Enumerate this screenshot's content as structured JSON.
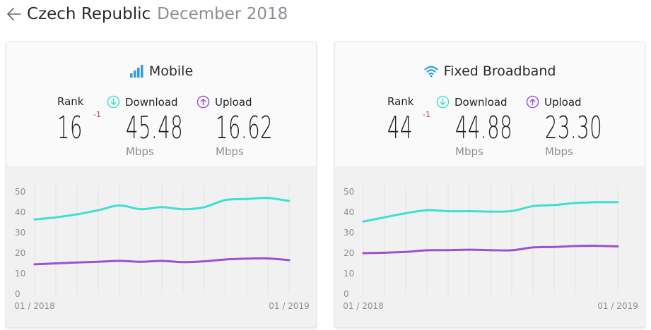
{
  "header": {
    "country": "Czech Republic",
    "date": "December 2018"
  },
  "colors": {
    "download": "#3ee0cf",
    "upload": "#9f4fd4",
    "mobile_icon": "#2f9ee0",
    "rank_change": "#e0264a"
  },
  "cards": [
    {
      "id": "mobile",
      "title": "Mobile",
      "icon": "signal-bars-icon",
      "rank_label": "Rank",
      "rank": "16",
      "rank_change": "-1",
      "download_label": "Download",
      "download": "45.48",
      "download_unit": "Mbps",
      "upload_label": "Upload",
      "upload": "16.62",
      "upload_unit": "Mbps",
      "chart_data": {
        "type": "line",
        "x": [
          "01 / 2018",
          "",
          "",
          "",
          "",
          "",
          "",
          "",
          "",
          "",
          "",
          "",
          "01 / 2019"
        ],
        "x_tick_labels": [
          "01 / 2018",
          "01 / 2019"
        ],
        "ylim": [
          0,
          50
        ],
        "yticks": [
          "0",
          "10",
          "20",
          "30",
          "40",
          "50"
        ],
        "series": [
          {
            "key": "download",
            "values": [
              36.5,
              37.5,
              39,
              41,
              43.3,
              41.5,
              42.5,
              41.5,
              42.5,
              46,
              46.5,
              47,
              45.5
            ]
          },
          {
            "key": "upload",
            "values": [
              14.5,
              15,
              15.4,
              15.8,
              16.2,
              15.8,
              16.2,
              15.6,
              16,
              16.9,
              17.3,
              17.4,
              16.6
            ]
          }
        ],
        "grid": "vertical"
      }
    },
    {
      "id": "fixed",
      "title": "Fixed Broadband",
      "icon": "wifi-icon",
      "rank_label": "Rank",
      "rank": "44",
      "rank_change": "-1",
      "download_label": "Download",
      "download": "44.88",
      "download_unit": "Mbps",
      "upload_label": "Upload",
      "upload": "23.30",
      "upload_unit": "Mbps",
      "chart_data": {
        "type": "line",
        "x": [
          "01 / 2018",
          "",
          "",
          "",
          "",
          "",
          "",
          "",
          "",
          "",
          "",
          "",
          "01 / 2019"
        ],
        "x_tick_labels": [
          "01 / 2018",
          "01 / 2019"
        ],
        "ylim": [
          0,
          50
        ],
        "yticks": [
          "0",
          "10",
          "20",
          "30",
          "40",
          "50"
        ],
        "series": [
          {
            "key": "download",
            "values": [
              35.5,
              37.5,
              39.5,
              41,
              40.5,
              40.5,
              40.3,
              40.6,
              43,
              43.5,
              44.5,
              44.9,
              44.9
            ]
          },
          {
            "key": "upload",
            "values": [
              20,
              20.2,
              20.6,
              21.4,
              21.5,
              21.7,
              21.5,
              21.4,
              22.8,
              23,
              23.5,
              23.6,
              23.3
            ]
          }
        ],
        "grid": "vertical"
      }
    }
  ]
}
